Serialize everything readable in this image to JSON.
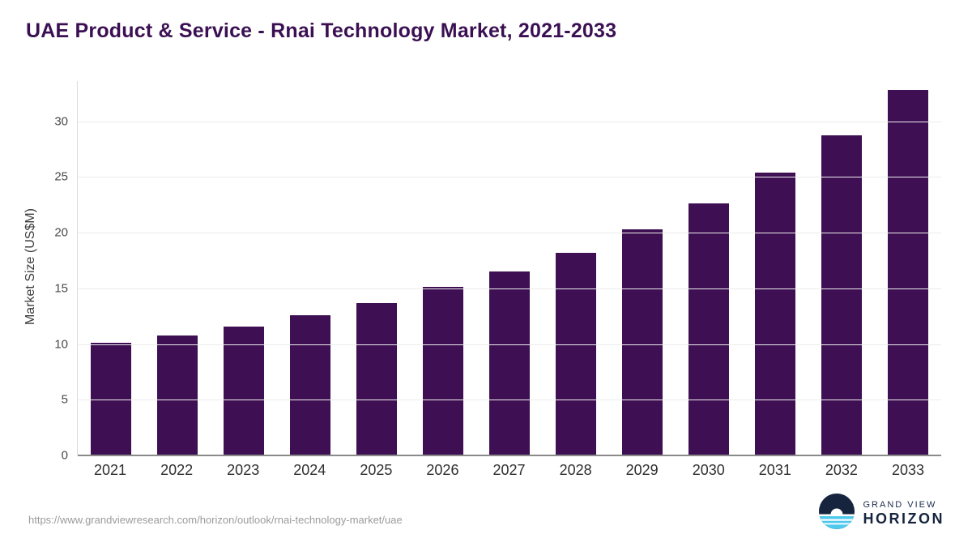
{
  "title": "UAE Product & Service - Rnai Technology Market, 2021-2033",
  "footer": {
    "source_url": "https://www.grandviewresearch.com/horizon/outlook/rnai-technology-market/uae"
  },
  "logo": {
    "line1": "GRAND VIEW",
    "line2": "HORIZON",
    "icon": "horizon-sun-icon",
    "navy": "#16243e",
    "light_blue": "#4ec9ed"
  },
  "colors": {
    "bar": "#3e1053",
    "title": "#3b1053",
    "gridline": "#ececec",
    "baseline": "#8a8a8a"
  },
  "chart_data": {
    "type": "bar",
    "title": "UAE Product & Service - Rnai Technology Market, 2021-2033",
    "xlabel": "",
    "ylabel": "Market Size (US$M)",
    "categories": [
      "2021",
      "2022",
      "2023",
      "2024",
      "2025",
      "2026",
      "2027",
      "2028",
      "2029",
      "2030",
      "2031",
      "2032",
      "2033"
    ],
    "values": [
      10.1,
      10.8,
      11.6,
      12.6,
      13.7,
      15.1,
      16.5,
      18.2,
      20.3,
      22.6,
      25.4,
      28.7,
      32.8
    ],
    "yticks": [
      0,
      5,
      10,
      15,
      20,
      25,
      30
    ],
    "ylim": [
      0,
      33.6
    ],
    "grid": "horizontal",
    "legend": "none"
  }
}
